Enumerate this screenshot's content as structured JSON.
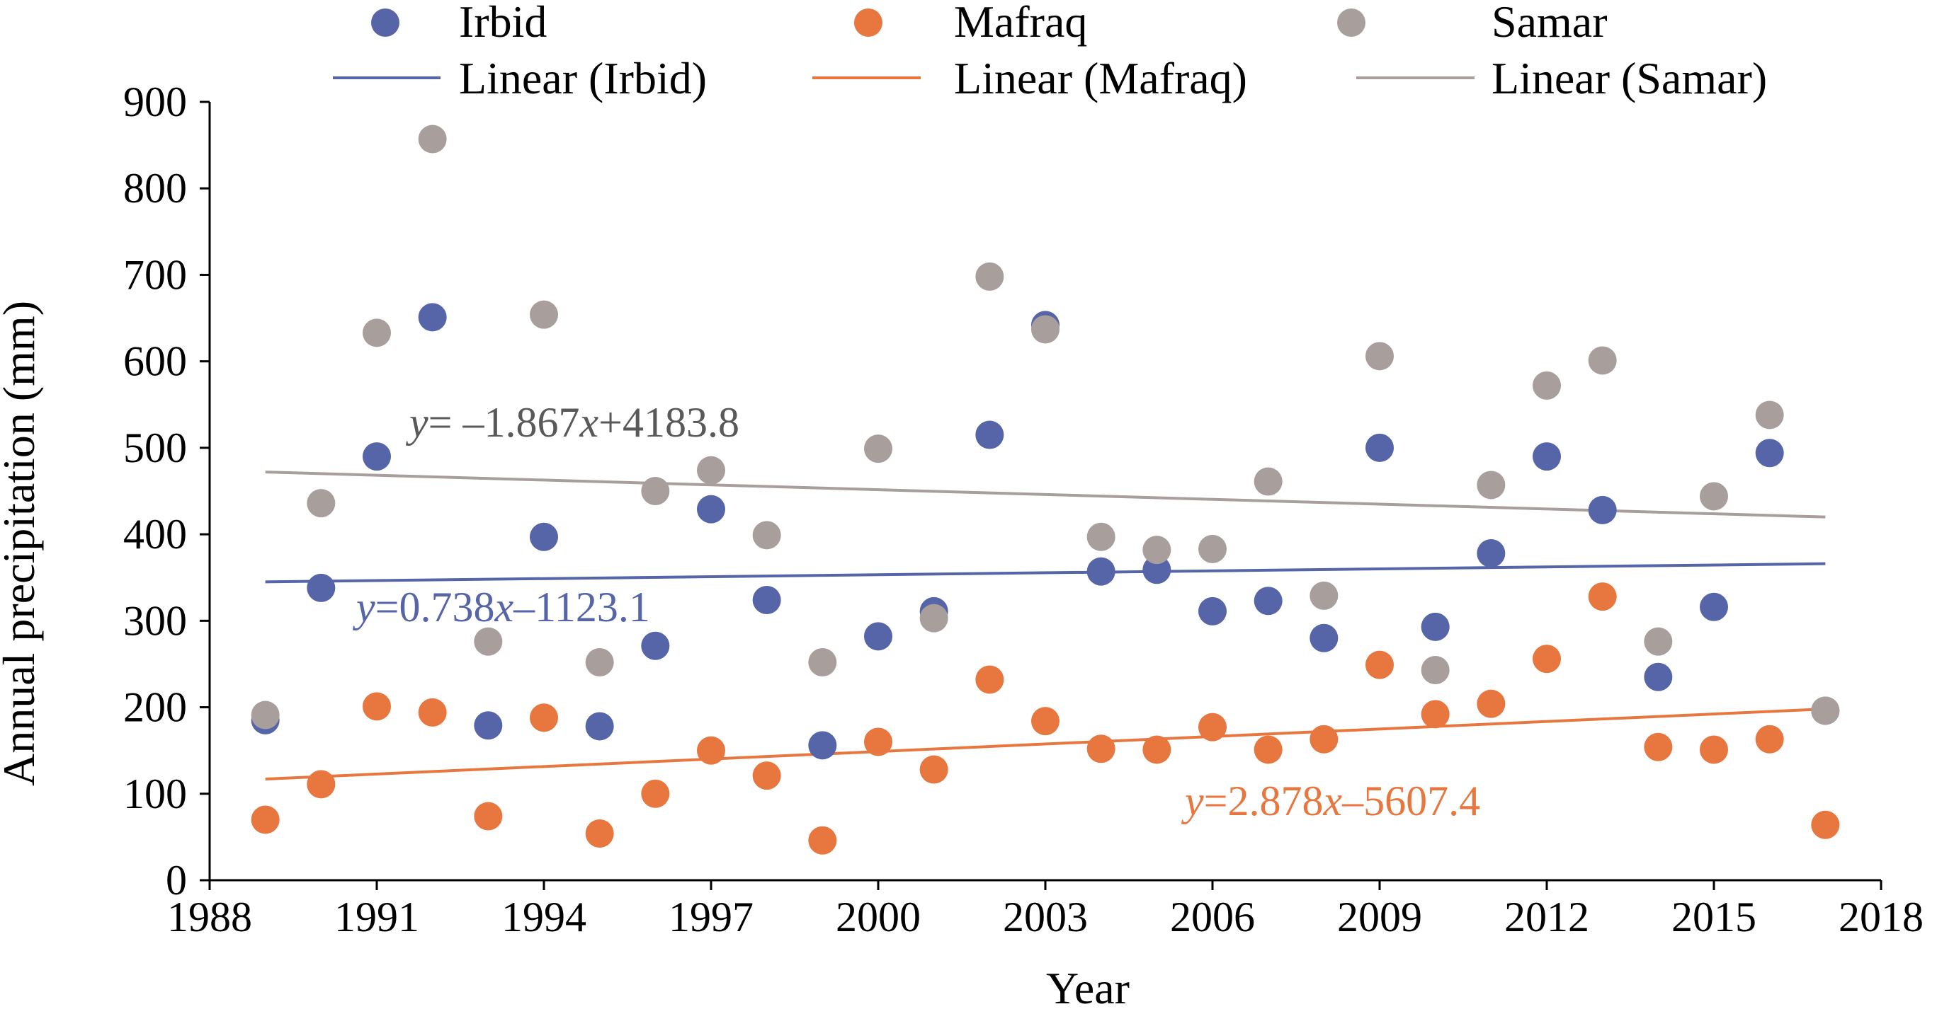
{
  "chart_data": {
    "type": "scatter",
    "xlabel": "Year",
    "ylabel": "Annual precipitation (mm)",
    "xlim": [
      1988,
      2018
    ],
    "ylim": [
      0,
      900
    ],
    "x_ticks": [
      1988,
      1991,
      1994,
      1997,
      2000,
      2003,
      2006,
      2009,
      2012,
      2015,
      2018
    ],
    "y_ticks": [
      0,
      100,
      200,
      300,
      400,
      500,
      600,
      700,
      800,
      900
    ],
    "grid": false,
    "legend_position": "top",
    "years": [
      1989,
      1990,
      1991,
      1992,
      1993,
      1994,
      1995,
      1996,
      1997,
      1998,
      1999,
      2000,
      2001,
      2002,
      2003,
      2004,
      2005,
      2006,
      2007,
      2008,
      2009,
      2010,
      2011,
      2012,
      2013,
      2014,
      2015,
      2016,
      2017
    ],
    "series": [
      {
        "name": "Irbid",
        "color": "#5565a8",
        "values": [
          185,
          338,
          490,
          651,
          179,
          397,
          178,
          271,
          429,
          324,
          156,
          282,
          311,
          515,
          642,
          357,
          359,
          311,
          323,
          280,
          500,
          293,
          378,
          490,
          428,
          235,
          316,
          494,
          196
        ],
        "trend_label": "Linear (Irbid)",
        "trend": [
          345,
          366
        ],
        "equation": {
          "y": "y",
          "mid": "=0.738",
          "x": "x",
          "rest": "–1123.1"
        }
      },
      {
        "name": "Mafraq",
        "color": "#e8763f",
        "values": [
          70,
          111,
          201,
          194,
          74,
          188,
          54,
          100,
          150,
          121,
          46,
          160,
          128,
          232,
          184,
          152,
          151,
          177,
          151,
          163,
          249,
          192,
          204,
          256,
          328,
          154,
          151,
          163,
          64
        ],
        "trend_label": "Linear (Mafraq)",
        "trend": [
          117,
          198
        ],
        "equation": {
          "y": "y",
          "mid": "=2.878",
          "x": "x",
          "rest": "–5607.4"
        }
      },
      {
        "name": "Samar",
        "color": "#a89e9b",
        "values": [
          191,
          436,
          633,
          857,
          276,
          654,
          252,
          450,
          474,
          399,
          252,
          499,
          303,
          698,
          637,
          397,
          382,
          383,
          461,
          329,
          606,
          243,
          457,
          572,
          601,
          276,
          444,
          538,
          196
        ],
        "trend_label": "Linear (Samar)",
        "trend": [
          472,
          420
        ],
        "equation": {
          "y": "y",
          "mid": "= –1.867",
          "x": "x",
          "rest": "+4183.8"
        }
      }
    ]
  }
}
